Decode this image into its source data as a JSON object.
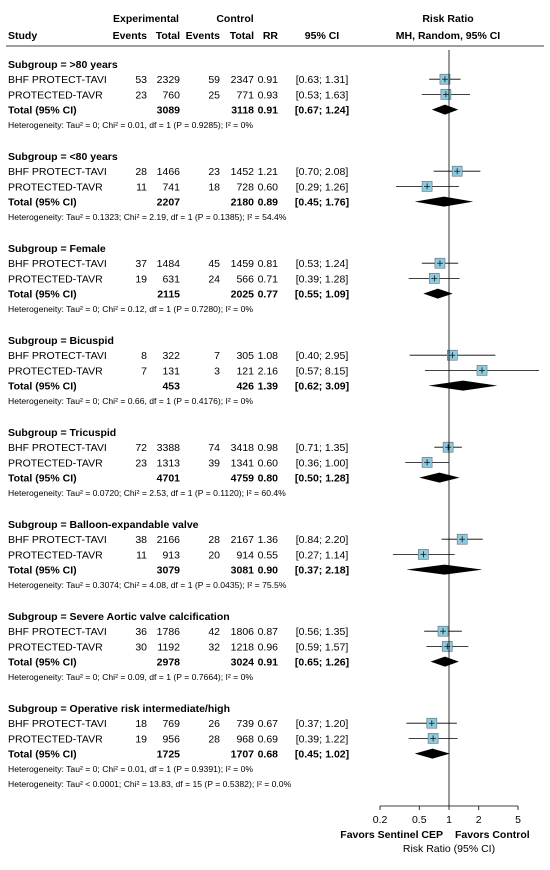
{
  "header": {
    "study": "Study",
    "experimental": "Experimental",
    "control": "Control",
    "events1": "Events",
    "total1": "Total",
    "events2": "Events",
    "total2": "Total",
    "rr": "RR",
    "ci": "95% CI",
    "risk_ratio": "Risk Ratio",
    "method": "MH, Random, 95% CI"
  },
  "chart_data": {
    "type": "forest",
    "x_scale": "log",
    "xlim": [
      0.2,
      5
    ],
    "x_ticks": [
      "0.2",
      "0.5",
      "1",
      "2",
      "5"
    ],
    "x_tick_values": [
      0.2,
      0.5,
      1,
      2,
      5
    ],
    "reference_line": 1,
    "left_label": "Favors Sentinel CEP",
    "right_label": "Favors Control",
    "xlabel": "Risk Ratio (95% CI)",
    "marker_color": "#8ecbe0",
    "subgroups": [
      {
        "title": "Subgroup = >80 years",
        "studies": [
          {
            "name": "BHF PROTECT-TAVI",
            "e1": "53",
            "n1": "2329",
            "e2": "59",
            "n2": "2347",
            "rr_text": "0.91",
            "ci_text": "[0.63; 1.31]",
            "rr": 0.91,
            "lo": 0.63,
            "hi": 1.31
          },
          {
            "name": "PROTECTED-TAVR",
            "e1": "23",
            "n1": "760",
            "e2": "25",
            "n2": "771",
            "rr_text": "0.93",
            "ci_text": "[0.53; 1.63]",
            "rr": 0.93,
            "lo": 0.53,
            "hi": 1.63
          }
        ],
        "total": {
          "label": "Total (95% CI)",
          "n1": "3089",
          "n2": "3118",
          "rr_text": "0.91",
          "ci_text": "[0.67; 1.24]",
          "rr": 0.91,
          "lo": 0.67,
          "hi": 1.24
        },
        "heterogeneity": "Heterogeneity: Tau² = 0; Chi² = 0.01, df = 1 (P = 0.9285); I² = 0%"
      },
      {
        "title": "Subgroup = <80 years",
        "studies": [
          {
            "name": "BHF PROTECT-TAVI",
            "e1": "28",
            "n1": "1466",
            "e2": "23",
            "n2": "1452",
            "rr_text": "1.21",
            "ci_text": "[0.70; 2.08]",
            "rr": 1.21,
            "lo": 0.7,
            "hi": 2.08
          },
          {
            "name": "PROTECTED-TAVR",
            "e1": "11",
            "n1": "741",
            "e2": "18",
            "n2": "728",
            "rr_text": "0.60",
            "ci_text": "[0.29; 1.26]",
            "rr": 0.6,
            "lo": 0.29,
            "hi": 1.26
          }
        ],
        "total": {
          "label": "Total (95% CI)",
          "n1": "2207",
          "n2": "2180",
          "rr_text": "0.89",
          "ci_text": "[0.45; 1.76]",
          "rr": 0.89,
          "lo": 0.45,
          "hi": 1.76
        },
        "heterogeneity": "Heterogeneity: Tau² = 0.1323; Chi² = 2.19, df = 1 (P = 0.1385); I² = 54.4%"
      },
      {
        "title": "Subgroup = Female",
        "studies": [
          {
            "name": "BHF PROTECT-TAVI",
            "e1": "37",
            "n1": "1484",
            "e2": "45",
            "n2": "1459",
            "rr_text": "0.81",
            "ci_text": "[0.53; 1.24]",
            "rr": 0.81,
            "lo": 0.53,
            "hi": 1.24
          },
          {
            "name": "PROTECTED-TAVR",
            "e1": "19",
            "n1": "631",
            "e2": "24",
            "n2": "566",
            "rr_text": "0.71",
            "ci_text": "[0.39; 1.28]",
            "rr": 0.71,
            "lo": 0.39,
            "hi": 1.28
          }
        ],
        "total": {
          "label": "Total (95% CI)",
          "n1": "2115",
          "n2": "2025",
          "rr_text": "0.77",
          "ci_text": "[0.55; 1.09]",
          "rr": 0.77,
          "lo": 0.55,
          "hi": 1.09
        },
        "heterogeneity": "Heterogeneity: Tau² = 0; Chi² = 0.12, df = 1 (P = 0.7280); I² = 0%"
      },
      {
        "title": "Subgroup = Bicuspid",
        "studies": [
          {
            "name": "BHF PROTECT-TAVI",
            "e1": "8",
            "n1": "322",
            "e2": "7",
            "n2": "305",
            "rr_text": "1.08",
            "ci_text": "[0.40; 2.95]",
            "rr": 1.08,
            "lo": 0.4,
            "hi": 2.95
          },
          {
            "name": "PROTECTED-TAVR",
            "e1": "7",
            "n1": "131",
            "e2": "3",
            "n2": "121",
            "rr_text": "2.16",
            "ci_text": "[0.57; 8.15]",
            "rr": 2.16,
            "lo": 0.57,
            "hi": 8.15
          }
        ],
        "total": {
          "label": "Total (95% CI)",
          "n1": "453",
          "n2": "426",
          "rr_text": "1.39",
          "ci_text": "[0.62; 3.09]",
          "rr": 1.39,
          "lo": 0.62,
          "hi": 3.09
        },
        "heterogeneity": "Heterogeneity: Tau² = 0; Chi² = 0.66, df = 1 (P = 0.4176); I² = 0%"
      },
      {
        "title": "Subgroup = Tricuspid",
        "studies": [
          {
            "name": "BHF PROTECT-TAVI",
            "e1": "72",
            "n1": "3388",
            "e2": "74",
            "n2": "3418",
            "rr_text": "0.98",
            "ci_text": "[0.71; 1.35]",
            "rr": 0.98,
            "lo": 0.71,
            "hi": 1.35
          },
          {
            "name": "PROTECTED-TAVR",
            "e1": "23",
            "n1": "1313",
            "e2": "39",
            "n2": "1341",
            "rr_text": "0.60",
            "ci_text": "[0.36; 1.00]",
            "rr": 0.6,
            "lo": 0.36,
            "hi": 1.0
          }
        ],
        "total": {
          "label": "Total (95% CI)",
          "n1": "4701",
          "n2": "4759",
          "rr_text": "0.80",
          "ci_text": "[0.50; 1.28]",
          "rr": 0.8,
          "lo": 0.5,
          "hi": 1.28
        },
        "heterogeneity": "Heterogeneity: Tau² = 0.0720; Chi² = 2.53, df = 1 (P = 0.1120); I² = 60.4%"
      },
      {
        "title": "Subgroup = Balloon-expandable valve",
        "studies": [
          {
            "name": "BHF PROTECT-TAVI",
            "e1": "38",
            "n1": "2166",
            "e2": "28",
            "n2": "2167",
            "rr_text": "1.36",
            "ci_text": "[0.84; 2.20]",
            "rr": 1.36,
            "lo": 0.84,
            "hi": 2.2
          },
          {
            "name": "PROTECTED-TAVR",
            "e1": "11",
            "n1": "913",
            "e2": "20",
            "n2": "914",
            "rr_text": "0.55",
            "ci_text": "[0.27; 1.14]",
            "rr": 0.55,
            "lo": 0.27,
            "hi": 1.14
          }
        ],
        "total": {
          "label": "Total (95% CI)",
          "n1": "3079",
          "n2": "3081",
          "rr_text": "0.90",
          "ci_text": "[0.37; 2.18]",
          "rr": 0.9,
          "lo": 0.37,
          "hi": 2.18
        },
        "heterogeneity": "Heterogeneity: Tau² = 0.3074; Chi² = 4.08, df = 1 (P = 0.0435); I² = 75.5%"
      },
      {
        "title": "Subgroup = Severe Aortic valve calcification",
        "studies": [
          {
            "name": "BHF PROTECT-TAVI",
            "e1": "36",
            "n1": "1786",
            "e2": "42",
            "n2": "1806",
            "rr_text": "0.87",
            "ci_text": "[0.56; 1.35]",
            "rr": 0.87,
            "lo": 0.56,
            "hi": 1.35
          },
          {
            "name": "PROTECTED-TAVR",
            "e1": "30",
            "n1": "1192",
            "e2": "32",
            "n2": "1218",
            "rr_text": "0.96",
            "ci_text": "[0.59; 1.57]",
            "rr": 0.96,
            "lo": 0.59,
            "hi": 1.57
          }
        ],
        "total": {
          "label": "Total (95% CI)",
          "n1": "2978",
          "n2": "3024",
          "rr_text": "0.91",
          "ci_text": "[0.65; 1.26]",
          "rr": 0.91,
          "lo": 0.65,
          "hi": 1.26
        },
        "heterogeneity": "Heterogeneity: Tau² = 0; Chi² = 0.09, df = 1 (P = 0.7664); I² = 0%"
      },
      {
        "title": "Subgroup = Operative risk intermediate/high",
        "studies": [
          {
            "name": "BHF PROTECT-TAVI",
            "e1": "18",
            "n1": "769",
            "e2": "26",
            "n2": "739",
            "rr_text": "0.67",
            "ci_text": "[0.37; 1.20]",
            "rr": 0.67,
            "lo": 0.37,
            "hi": 1.2
          },
          {
            "name": "PROTECTED-TAVR",
            "e1": "19",
            "n1": "956",
            "e2": "28",
            "n2": "968",
            "rr_text": "0.69",
            "ci_text": "[0.39; 1.22]",
            "rr": 0.69,
            "lo": 0.39,
            "hi": 1.22
          }
        ],
        "total": {
          "label": "Total (95% CI)",
          "n1": "1725",
          "n2": "1707",
          "rr_text": "0.68",
          "ci_text": "[0.45; 1.02]",
          "rr": 0.68,
          "lo": 0.45,
          "hi": 1.02
        },
        "heterogeneity": "Heterogeneity: Tau² = 0; Chi² = 0.01, df = 1 (P = 0.9391); I² = 0%"
      }
    ],
    "overall_heterogeneity": "Heterogeneity: Tau² < 0.0001; Chi² = 13.83, df = 15 (P = 0.5382); I² = 0.0%"
  }
}
